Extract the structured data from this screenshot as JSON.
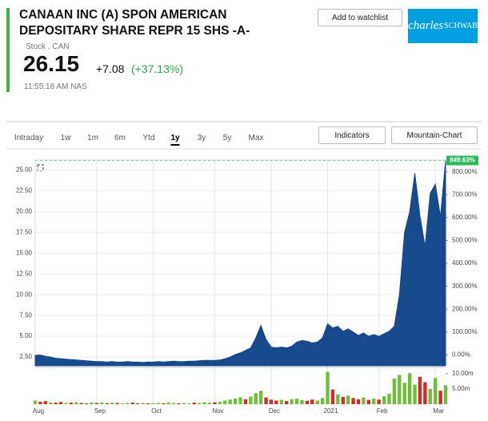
{
  "header": {
    "title": "CANAAN INC (A) SPON AMERICAN DEPOSITARY SHARE REPR 15 SHS -A-",
    "kind": "Stock , CAN",
    "price": "26.15",
    "change": "+7.08",
    "change_pct": "(+37.13%)",
    "time": "11:55:18 AM NAS",
    "watchlist": "Add to watchlist",
    "logo_script": "charles",
    "logo_caps": "SCHWAB"
  },
  "toolbar": {
    "tabs": [
      "Intraday",
      "1w",
      "1m",
      "6m",
      "Ytd",
      "1y",
      "3y",
      "5y",
      "Max"
    ],
    "active_tab": 5,
    "indicators": "Indicators",
    "chart_type": "Mountain-Chart"
  },
  "chart_data": {
    "type": "area",
    "categories": [
      "Aug",
      null,
      null,
      null,
      null,
      null,
      null,
      null,
      null,
      null,
      null,
      null,
      "Sep",
      null,
      null,
      null,
      null,
      null,
      null,
      null,
      null,
      null,
      null,
      "Oct",
      null,
      null,
      null,
      null,
      null,
      null,
      null,
      null,
      null,
      null,
      null,
      "Nov",
      null,
      null,
      null,
      null,
      null,
      null,
      null,
      null,
      null,
      null,
      "Dec",
      null,
      null,
      null,
      null,
      null,
      null,
      null,
      null,
      null,
      null,
      "2021",
      null,
      null,
      null,
      null,
      null,
      null,
      null,
      null,
      null,
      "Feb",
      null,
      null,
      null,
      null,
      null,
      null,
      null,
      null,
      null,
      null,
      "Mar",
      null,
      null
    ],
    "series": [
      {
        "color": "#164a8c",
        "values": [
          2.7,
          2.75,
          2.6,
          2.5,
          2.35,
          2.3,
          2.25,
          2.2,
          2.15,
          2.1,
          2.05,
          2.0,
          1.95,
          1.95,
          1.9,
          1.95,
          1.9,
          1.9,
          1.95,
          1.9,
          1.9,
          1.85,
          1.9,
          1.9,
          1.95,
          1.9,
          1.95,
          2.0,
          1.95,
          1.95,
          2.0,
          2.0,
          2.05,
          2.1,
          2.1,
          2.1,
          2.15,
          2.3,
          2.5,
          2.8,
          3.0,
          3.3,
          3.6,
          4.8,
          6.3,
          4.6,
          3.7,
          3.6,
          3.7,
          3.6,
          3.8,
          4.3,
          4.5,
          4.4,
          4.2,
          4.3,
          4.8,
          6.5,
          6.0,
          6.2,
          5.6,
          5.9,
          5.5,
          5.1,
          5.4,
          5.0,
          5.2,
          5.0,
          5.3,
          5.6,
          6.2,
          10.0,
          17.5,
          20.0,
          24.6,
          19.5,
          15.8,
          22.2,
          23.3,
          19.4,
          26.15
        ]
      }
    ],
    "ylim": [
      1.45,
      26.2
    ],
    "yticks": [
      {
        "value": 2.5,
        "label": "2.50"
      },
      {
        "value": 5,
        "label": "5.00"
      },
      {
        "value": 7.5,
        "label": "7.50"
      },
      {
        "value": 10,
        "label": "10.00"
      },
      {
        "value": 12.5,
        "label": "12.50"
      },
      {
        "value": 15,
        "label": "15.00"
      },
      {
        "value": 17.5,
        "label": "17.50"
      },
      {
        "value": 20,
        "label": "20.00"
      },
      {
        "value": 22.5,
        "label": "22.50"
      },
      {
        "value": 25,
        "label": "25.00"
      }
    ],
    "y2lim": [
      -47.3,
      851.4
    ],
    "y2ticks": [
      {
        "value": 0,
        "label": "0.00%"
      },
      {
        "value": 100,
        "label": "100.00%"
      },
      {
        "value": 200,
        "label": "200.00%"
      },
      {
        "value": 300,
        "label": "300.00%"
      },
      {
        "value": 400,
        "label": "400.00%"
      },
      {
        "value": 500,
        "label": "500.00%"
      },
      {
        "value": 600,
        "label": "600.00%"
      },
      {
        "value": 700,
        "label": "700.00%"
      },
      {
        "value": 800,
        "label": "800.00%"
      }
    ],
    "last_label": {
      "value": 849.63,
      "label": "849.63%"
    },
    "grid": true,
    "volume": {
      "type": "bar",
      "ylim": [
        0,
        11.8
      ],
      "yticks": [
        {
          "value": 5,
          "label": "5.00m"
        },
        {
          "value": 10,
          "label": "10.00m"
        }
      ],
      "values": [
        1.2,
        0.8,
        1.0,
        0.6,
        0.5,
        0.7,
        0.4,
        0.5,
        0.6,
        0.4,
        0.3,
        0.5,
        0.4,
        0.6,
        0.3,
        0.5,
        0.4,
        0.3,
        0.4,
        0.5,
        0.3,
        0.4,
        0.3,
        0.3,
        0.4,
        0.3,
        0.5,
        0.4,
        0.3,
        0.4,
        0.3,
        0.5,
        0.4,
        0.6,
        0.5,
        0.6,
        0.8,
        1.2,
        1.5,
        1.8,
        2.2,
        1.6,
        2.5,
        3.6,
        4.4,
        2.2,
        1.5,
        1.2,
        1.4,
        1.0,
        1.6,
        1.8,
        1.3,
        1.1,
        1.5,
        1.2,
        2.0,
        10.6,
        4.8,
        3.2,
        2.4,
        2.8,
        2.0,
        1.6,
        2.2,
        1.4,
        1.8,
        1.5,
        2.6,
        3.4,
        8.4,
        9.6,
        7.0,
        10.2,
        6.4,
        9.0,
        7.2,
        5.0,
        8.6,
        4.4,
        6.2
      ],
      "colors": [
        "#6fbf3b",
        "#d32a2a",
        "#d32a2a",
        "#6fbf3b",
        "#d32a2a",
        "#d32a2a",
        "#6fbf3b",
        "#d32a2a",
        "#6fbf3b",
        "#d32a2a",
        "#d32a2a",
        "#6fbf3b",
        "#d32a2a",
        "#6fbf3b",
        "#d32a2a",
        "#6fbf3b",
        "#d32a2a",
        "#6fbf3b",
        "#6fbf3b",
        "#d32a2a",
        "#d32a2a",
        "#6fbf3b",
        "#d32a2a",
        "#6fbf3b",
        "#6fbf3b",
        "#d32a2a",
        "#6fbf3b",
        "#6fbf3b",
        "#d32a2a",
        "#6fbf3b",
        "#6fbf3b",
        "#d32a2a",
        "#6fbf3b",
        "#6fbf3b",
        "#6fbf3b",
        "#d32a2a",
        "#6fbf3b",
        "#6fbf3b",
        "#6fbf3b",
        "#6fbf3b",
        "#6fbf3b",
        "#d32a2a",
        "#6fbf3b",
        "#6fbf3b",
        "#6fbf3b",
        "#d32a2a",
        "#d32a2a",
        "#d32a2a",
        "#6fbf3b",
        "#d32a2a",
        "#6fbf3b",
        "#6fbf3b",
        "#6fbf3b",
        "#d32a2a",
        "#d32a2a",
        "#6fbf3b",
        "#6fbf3b",
        "#6fbf3b",
        "#d32a2a",
        "#6fbf3b",
        "#d32a2a",
        "#6fbf3b",
        "#d32a2a",
        "#d32a2a",
        "#6fbf3b",
        "#d32a2a",
        "#6fbf3b",
        "#d32a2a",
        "#6fbf3b",
        "#6fbf3b",
        "#6fbf3b",
        "#6fbf3b",
        "#6fbf3b",
        "#6fbf3b",
        "#6fbf3b",
        "#d32a2a",
        "#d32a2a",
        "#6fbf3b",
        "#6fbf3b",
        "#d32a2a",
        "#6fbf3b"
      ]
    }
  }
}
